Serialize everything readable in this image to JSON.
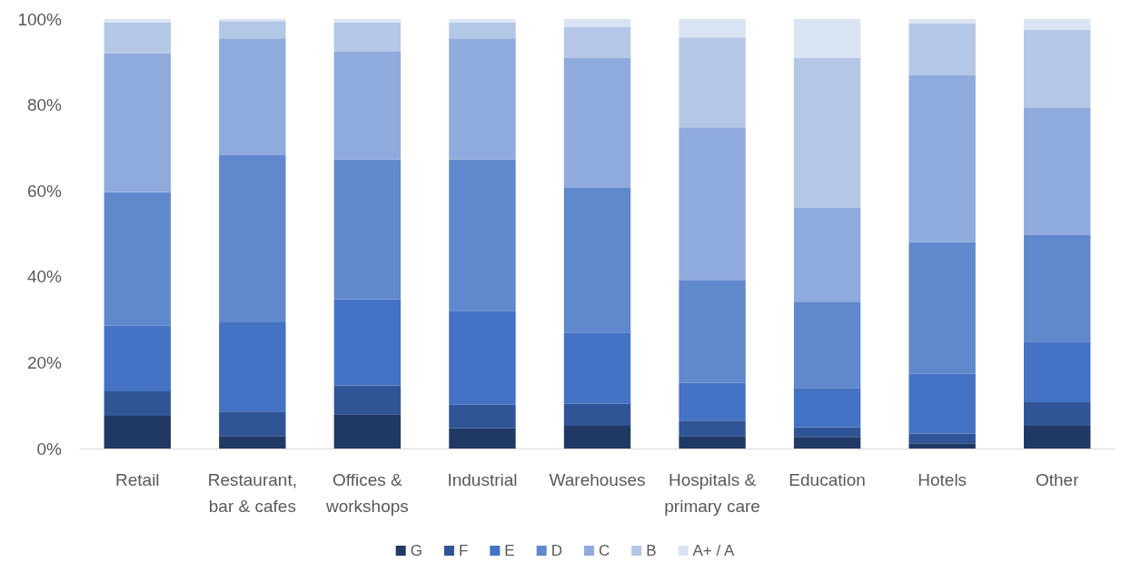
{
  "chart_data": {
    "type": "bar",
    "stacked": true,
    "categories": [
      "Retail",
      "Restaurant,\nbar & cafes",
      "Offices &\nworkshops",
      "Industrial",
      "Warehouses",
      "Hospitals &\nprimary care",
      "Education",
      "Hotels",
      "Other"
    ],
    "series": [
      {
        "name": "G",
        "color": "#203864",
        "values": [
          7.6,
          2.9,
          8.0,
          4.7,
          5.3,
          2.9,
          2.7,
          1.2,
          5.3
        ]
      },
      {
        "name": "F",
        "color": "#2f5597",
        "values": [
          5.7,
          5.7,
          6.7,
          5.5,
          5.1,
          3.6,
          2.2,
          2.3,
          5.5
        ]
      },
      {
        "name": "E",
        "color": "#4472c4",
        "values": [
          15.3,
          20.8,
          20.1,
          21.9,
          16.6,
          8.8,
          9.2,
          13.9,
          14.1
        ]
      },
      {
        "name": "D",
        "color": "#6088cc",
        "values": [
          31.1,
          38.9,
          32.5,
          35.2,
          33.7,
          23.8,
          20.1,
          30.7,
          24.8
        ]
      },
      {
        "name": "C",
        "color": "#8faadc",
        "values": [
          32.3,
          27.2,
          25.1,
          28.2,
          30.3,
          35.7,
          21.8,
          38.8,
          29.6
        ]
      },
      {
        "name": "B",
        "color": "#b4c7e7",
        "values": [
          7.2,
          4.0,
          6.8,
          3.7,
          7.2,
          20.9,
          35.0,
          12.1,
          18.2
        ]
      },
      {
        "name": "A+ / A",
        "color": "#dae3f3",
        "values": [
          0.8,
          0.5,
          0.8,
          0.8,
          1.8,
          4.3,
          9.0,
          1.0,
          2.5
        ]
      }
    ],
    "ylim": [
      0,
      100
    ],
    "yticks": [
      {
        "value": 0,
        "label": "0%"
      },
      {
        "value": 20,
        "label": "20%"
      },
      {
        "value": 40,
        "label": "40%"
      },
      {
        "value": 60,
        "label": "60%"
      },
      {
        "value": 80,
        "label": "80%"
      },
      {
        "value": 100,
        "label": "100%"
      }
    ],
    "grid": false,
    "legend": "bottom"
  }
}
